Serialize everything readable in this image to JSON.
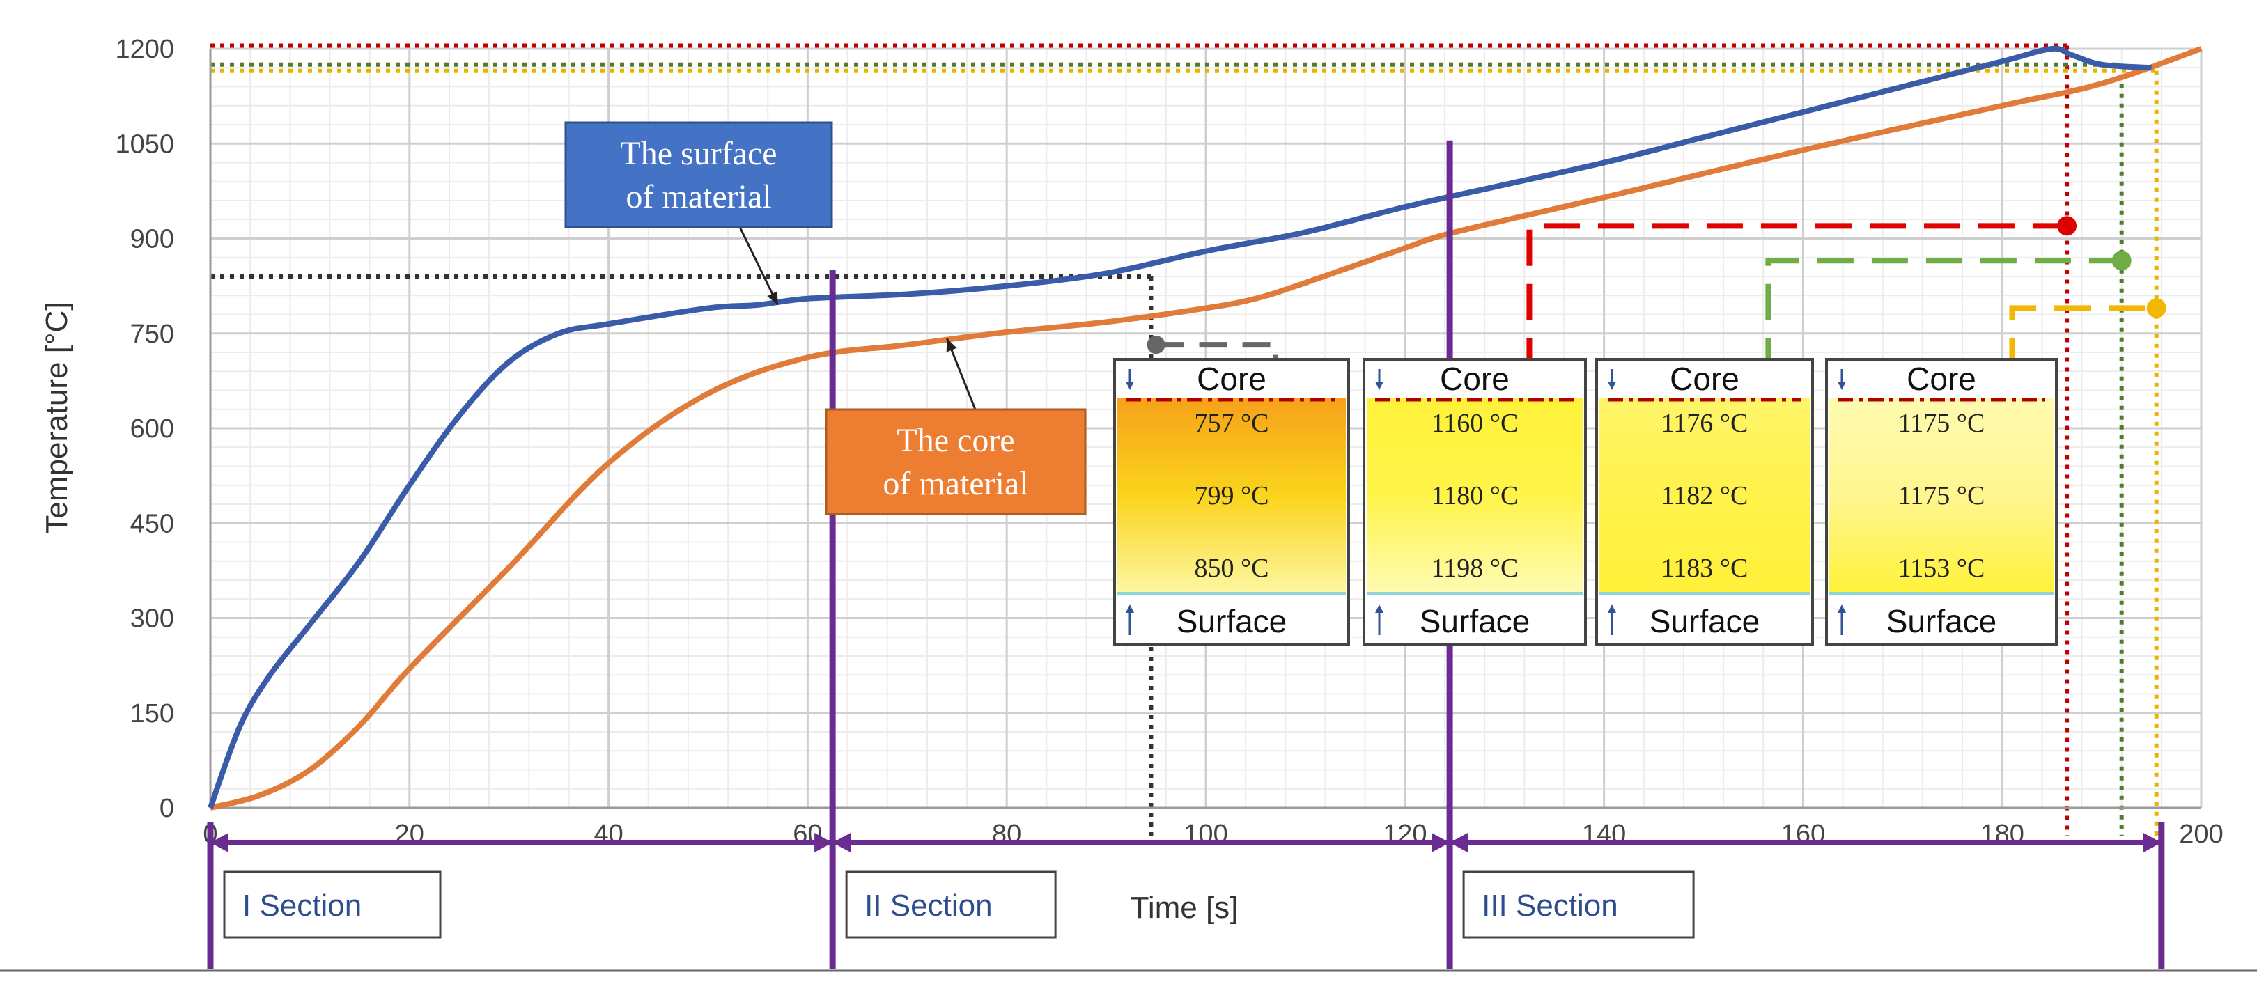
{
  "chart_data": {
    "type": "line",
    "xlabel": "Time [s]",
    "ylabel": "Temperature [°C]",
    "xlim": [
      0,
      200
    ],
    "ylim": [
      0,
      1200
    ],
    "x_ticks": [
      "0",
      "20",
      "40",
      "60",
      "80",
      "100",
      "120",
      "140",
      "160",
      "180",
      "200"
    ],
    "y_ticks": [
      "0",
      "150",
      "300",
      "450",
      "600",
      "750",
      "900",
      "1050",
      "1200"
    ],
    "grid": true,
    "series": [
      {
        "name": "The surface of material",
        "color": "#3a5ca8",
        "points": [
          [
            0,
            0
          ],
          [
            3,
            130
          ],
          [
            6,
            210
          ],
          [
            10,
            290
          ],
          [
            15,
            390
          ],
          [
            20,
            510
          ],
          [
            25,
            620
          ],
          [
            30,
            705
          ],
          [
            35,
            750
          ],
          [
            40,
            765
          ],
          [
            50,
            790
          ],
          [
            55,
            795
          ],
          [
            60,
            805
          ],
          [
            70,
            812
          ],
          [
            80,
            825
          ],
          [
            90,
            845
          ],
          [
            100,
            880
          ],
          [
            110,
            910
          ],
          [
            120,
            950
          ],
          [
            130,
            985
          ],
          [
            140,
            1020
          ],
          [
            150,
            1060
          ],
          [
            160,
            1100
          ],
          [
            170,
            1140
          ],
          [
            180,
            1180
          ],
          [
            185,
            1200
          ],
          [
            187,
            1190
          ],
          [
            190,
            1175
          ],
          [
            195,
            1170
          ]
        ]
      },
      {
        "name": "The core of material",
        "color": "#e07b3a",
        "points": [
          [
            0,
            0
          ],
          [
            5,
            20
          ],
          [
            10,
            60
          ],
          [
            15,
            130
          ],
          [
            20,
            220
          ],
          [
            30,
            380
          ],
          [
            40,
            545
          ],
          [
            50,
            655
          ],
          [
            60,
            712
          ],
          [
            70,
            732
          ],
          [
            80,
            752
          ],
          [
            90,
            768
          ],
          [
            100,
            790
          ],
          [
            105,
            805
          ],
          [
            110,
            830
          ],
          [
            120,
            885
          ],
          [
            125,
            910
          ],
          [
            140,
            965
          ],
          [
            160,
            1040
          ],
          [
            180,
            1110
          ],
          [
            190,
            1145
          ],
          [
            200,
            1200
          ]
        ]
      }
    ],
    "reference_lines": [
      {
        "color": "#c00000",
        "y": 1205,
        "x": 186.5,
        "y_top": 1205
      },
      {
        "color": "#4f7d2b",
        "y": 1175,
        "x": 192,
        "y_top": 1175
      },
      {
        "color": "#e8b400",
        "y": 1165,
        "x": 195.5,
        "y_top": 1165
      },
      {
        "color": "#333333",
        "y": 840,
        "x": 94.5,
        "y_top": 840
      }
    ],
    "section_lines": [
      62.5,
      124.5
    ],
    "sections": [
      {
        "label": "I Section",
        "x_start": 0,
        "x_end": 62.5
      },
      {
        "label": "II Section",
        "x_start": 62.5,
        "x_end": 124.5
      },
      {
        "label": "III Section",
        "x_start": 124.5,
        "x_end": 196
      }
    ],
    "annotations": {
      "surface_label": [
        "The surface",
        "of material"
      ],
      "core_label": [
        "The core",
        "of material"
      ],
      "surface_arrow_target": [
        57,
        795
      ],
      "core_arrow_target": [
        74,
        742
      ]
    },
    "insets": [
      {
        "core_label": "Core",
        "surface_label": "Surface",
        "temps": [
          "757 °C",
          "799 °C",
          "850 °C"
        ],
        "marker_color": "#666666",
        "marker_x": 107,
        "marker_y": 685,
        "gradient": [
          "#f6a21a",
          "#fbd41c",
          "#fcf7a2"
        ]
      },
      {
        "core_label": "Core",
        "surface_label": "Surface",
        "temps": [
          "1160 °C",
          "1180 °C",
          "1198 °C"
        ],
        "marker_color": "#e00000",
        "marker_x": 132.5,
        "marker_y": 685,
        "corner_x": 186.5,
        "corner_y": 920,
        "gradient": [
          "#fff23a",
          "#fff44a",
          "#fffbb3"
        ]
      },
      {
        "core_label": "Core",
        "surface_label": "Surface",
        "temps": [
          "1176 °C",
          "1182 °C",
          "1183 °C"
        ],
        "marker_color": "#70ad47",
        "marker_x": 156.5,
        "marker_y": 685,
        "corner_x": 192,
        "corner_y": 865,
        "gradient": [
          "#fff56a",
          "#fff24a",
          "#fff03a"
        ]
      },
      {
        "core_label": "Core",
        "surface_label": "Surface",
        "temps": [
          "1175 °C",
          "1175 °C",
          "1153 °C"
        ],
        "marker_color": "#f2b705",
        "marker_x": 181,
        "marker_y": 685,
        "corner_x": 195.5,
        "corner_y": 790,
        "gradient": [
          "#fffbb0",
          "#fff690",
          "#fff23a"
        ]
      }
    ]
  }
}
